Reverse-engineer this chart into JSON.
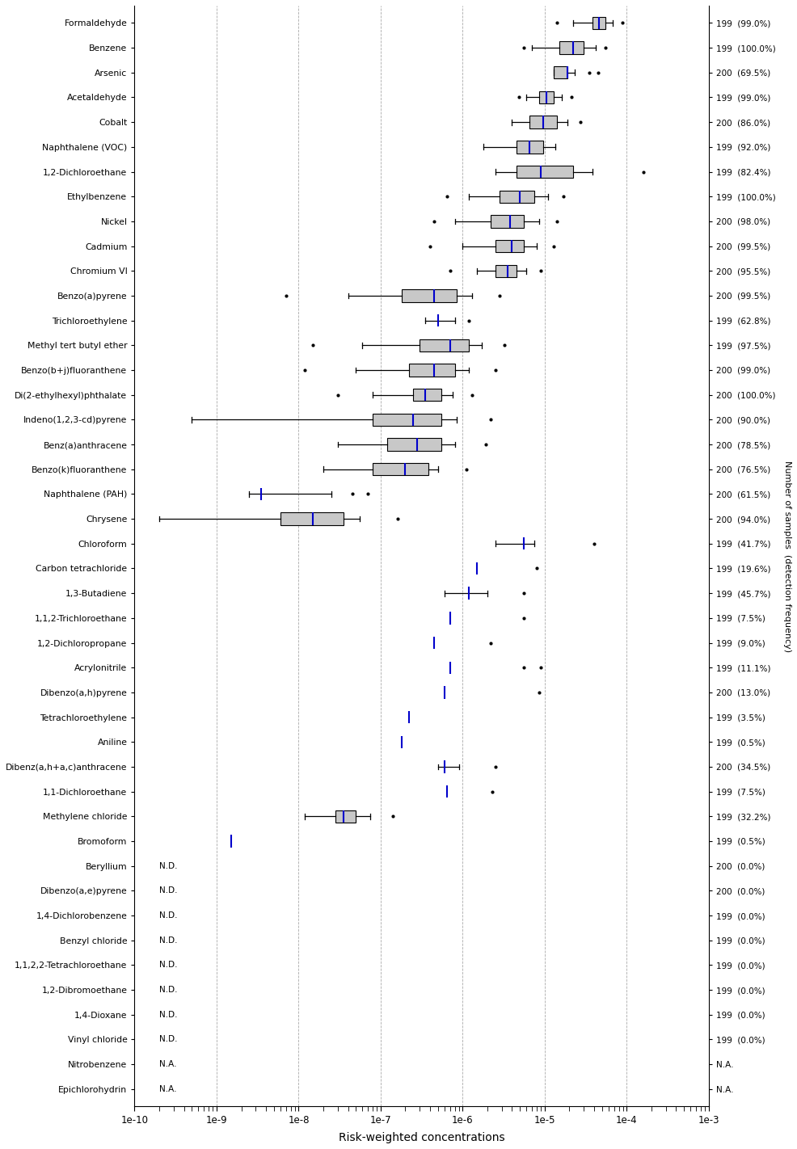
{
  "compounds": [
    "Formaldehyde",
    "Benzene",
    "Arsenic",
    "Acetaldehyde",
    "Cobalt",
    "Naphthalene (VOC)",
    "1,2-Dichloroethane",
    "Ethylbenzene",
    "Nickel",
    "Cadmium",
    "Chromium VI",
    "Benzo(a)pyrene",
    "Trichloroethylene",
    "Methyl tert butyl ether",
    "Benzo(b+j)fluoranthene",
    "Di(2-ethylhexyl)phthalate",
    "Indeno(1,2,3-cd)pyrene",
    "Benz(a)anthracene",
    "Benzo(k)fluoranthene",
    "Naphthalene (PAH)",
    "Chrysene",
    "Chloroform",
    "Carbon tetrachloride",
    "1,3-Butadiene",
    "1,1,2-Trichloroethane",
    "1,2-Dichloropropane",
    "Acrylonitrile",
    "Dibenzo(a,h)pyrene",
    "Tetrachloroethylene",
    "Aniline",
    "Dibenz(a,h+a,c)anthracene",
    "1,1-Dichloroethane",
    "Methylene chloride",
    "Bromoform",
    "Beryllium",
    "Dibenzo(a,e)pyrene",
    "1,4-Dichlorobenzene",
    "Benzyl chloride",
    "1,1,2,2-Tetrachloroethane",
    "1,2-Dibromoethane",
    "1,4-Dioxane",
    "Vinyl chloride",
    "Nitrobenzene",
    "Epichlorohydrin"
  ],
  "n_samples": [
    199,
    199,
    200,
    199,
    200,
    199,
    199,
    199,
    200,
    200,
    200,
    200,
    199,
    199,
    200,
    200,
    200,
    200,
    200,
    200,
    200,
    199,
    199,
    199,
    199,
    199,
    199,
    200,
    199,
    199,
    200,
    199,
    199,
    199,
    200,
    200,
    199,
    199,
    199,
    199,
    199,
    199,
    "N.A.",
    "N.A."
  ],
  "det_freq": [
    "99.0%",
    "100.0%",
    "69.5%",
    "99.0%",
    "86.0%",
    "92.0%",
    "82.4%",
    "100.0%",
    "98.0%",
    "99.5%",
    "95.5%",
    "99.5%",
    "62.8%",
    "97.5%",
    "99.0%",
    "100.0%",
    "90.0%",
    "78.5%",
    "76.5%",
    "61.5%",
    "94.0%",
    "41.7%",
    "19.6%",
    "45.7%",
    "7.5%",
    "9.0%",
    "11.1%",
    "13.0%",
    "3.5%",
    "0.5%",
    "34.5%",
    "7.5%",
    "32.2%",
    "0.5%",
    "0.0%",
    "0.0%",
    "0.0%",
    "0.0%",
    "0.0%",
    "0.0%",
    "0.0%",
    "0.0%",
    "N.A.",
    "N.A."
  ],
  "box_data": {
    "Formaldehyde": {
      "q1": 3.8e-05,
      "median": 4.6e-05,
      "q3": 5.5e-05,
      "wlo": 2.2e-05,
      "whi": 6.8e-05,
      "olo": [
        1.4e-05
      ],
      "ohi": [
        8.8e-05
      ],
      "has_box": true
    },
    "Benzene": {
      "q1": 1.5e-05,
      "median": 2.2e-05,
      "q3": 3e-05,
      "wlo": 7e-06,
      "whi": 4.2e-05,
      "olo": [
        5.5e-06
      ],
      "ohi": [
        5.5e-05
      ],
      "has_box": true
    },
    "Arsenic": {
      "q1": 1.3e-05,
      "median": 1.9e-05,
      "q3": 1.9e-05,
      "wlo": 1.3e-05,
      "whi": 2.3e-05,
      "olo": [],
      "ohi": [
        3.5e-05,
        4.5e-05
      ],
      "has_box": true
    },
    "Acetaldehyde": {
      "q1": 8.5e-06,
      "median": 1.05e-05,
      "q3": 1.3e-05,
      "wlo": 6e-06,
      "whi": 1.6e-05,
      "olo": [
        4.8e-06
      ],
      "ohi": [
        2.1e-05
      ],
      "has_box": true
    },
    "Cobalt": {
      "q1": 6.5e-06,
      "median": 9.5e-06,
      "q3": 1.4e-05,
      "wlo": 4e-06,
      "whi": 1.9e-05,
      "olo": [],
      "ohi": [
        2.7e-05
      ],
      "has_box": true
    },
    "Naphthalene (VOC)": {
      "q1": 4.5e-06,
      "median": 6.5e-06,
      "q3": 9.5e-06,
      "wlo": 1.8e-06,
      "whi": 1.35e-05,
      "olo": [],
      "ohi": [],
      "has_box": true
    },
    "1,2-Dichloroethane": {
      "q1": 4.5e-06,
      "median": 9e-06,
      "q3": 2.2e-05,
      "wlo": 2.5e-06,
      "whi": 3.8e-05,
      "olo": [],
      "ohi": [
        0.00016
      ],
      "has_box": true
    },
    "Ethylbenzene": {
      "q1": 2.8e-06,
      "median": 5e-06,
      "q3": 7.5e-06,
      "wlo": 1.2e-06,
      "whi": 1.1e-05,
      "olo": [
        6.5e-07
      ],
      "ohi": [
        1.7e-05
      ],
      "has_box": true
    },
    "Nickel": {
      "q1": 2.2e-06,
      "median": 3.8e-06,
      "q3": 5.5e-06,
      "wlo": 8e-07,
      "whi": 8.5e-06,
      "olo": [
        4.5e-07
      ],
      "ohi": [
        1.4e-05
      ],
      "has_box": true
    },
    "Cadmium": {
      "q1": 2.5e-06,
      "median": 4e-06,
      "q3": 5.5e-06,
      "wlo": 1e-06,
      "whi": 8e-06,
      "olo": [
        4e-07
      ],
      "ohi": [
        1.3e-05
      ],
      "has_box": true
    },
    "Chromium VI": {
      "q1": 2.5e-06,
      "median": 3.5e-06,
      "q3": 4.5e-06,
      "wlo": 1.5e-06,
      "whi": 6e-06,
      "olo": [
        7e-07
      ],
      "ohi": [
        9e-06
      ],
      "has_box": true
    },
    "Benzo(a)pyrene": {
      "q1": 1.8e-07,
      "median": 4.5e-07,
      "q3": 8.5e-07,
      "wlo": 4e-08,
      "whi": 1.3e-06,
      "olo": [
        7e-09
      ],
      "ohi": [
        2.8e-06
      ],
      "has_box": true
    },
    "Trichloroethylene": {
      "q1": 3.5e-07,
      "median": 5e-07,
      "q3": 3.5e-07,
      "wlo": 3.5e-07,
      "whi": 8e-07,
      "olo": [],
      "ohi": [
        1.2e-06
      ],
      "has_box": false
    },
    "Methyl tert butyl ether": {
      "q1": 3e-07,
      "median": 7e-07,
      "q3": 1.2e-06,
      "wlo": 6e-08,
      "whi": 1.7e-06,
      "olo": [
        1.5e-08
      ],
      "ohi": [
        3.2e-06
      ],
      "has_box": true
    },
    "Benzo(b+j)fluoranthene": {
      "q1": 2.2e-07,
      "median": 4.5e-07,
      "q3": 8e-07,
      "wlo": 5e-08,
      "whi": 1.2e-06,
      "olo": [
        1.2e-08
      ],
      "ohi": [
        2.5e-06
      ],
      "has_box": true
    },
    "Di(2-ethylhexyl)phthalate": {
      "q1": 2.5e-07,
      "median": 3.5e-07,
      "q3": 5.5e-07,
      "wlo": 8e-08,
      "whi": 7.5e-07,
      "olo": [
        3e-08
      ],
      "ohi": [
        1.3e-06
      ],
      "has_box": true
    },
    "Indeno(1,2,3-cd)pyrene": {
      "q1": 8e-08,
      "median": 2.5e-07,
      "q3": 5.5e-07,
      "wlo": 5e-10,
      "whi": 8.5e-07,
      "olo": [],
      "ohi": [
        2.2e-06
      ],
      "has_box": true
    },
    "Benz(a)anthracene": {
      "q1": 1.2e-07,
      "median": 2.8e-07,
      "q3": 5.5e-07,
      "wlo": 3e-08,
      "whi": 8e-07,
      "olo": [],
      "ohi": [
        1.9e-06
      ],
      "has_box": true
    },
    "Benzo(k)fluoranthene": {
      "q1": 8e-08,
      "median": 2e-07,
      "q3": 3.8e-07,
      "wlo": 2e-08,
      "whi": 5e-07,
      "olo": [],
      "ohi": [
        1.1e-06
      ],
      "has_box": true
    },
    "Naphthalene (PAH)": {
      "q1": 2.5e-09,
      "median": 3.5e-09,
      "q3": 2.5e-09,
      "wlo": 2.5e-09,
      "whi": 2.5e-08,
      "olo": [],
      "ohi": [
        4.5e-08,
        7e-08
      ],
      "has_box": false
    },
    "Chrysene": {
      "q1": 6e-09,
      "median": 1.5e-08,
      "q3": 3.5e-08,
      "wlo": 2e-10,
      "whi": 5.5e-08,
      "olo": [],
      "ohi": [
        1.6e-07
      ],
      "has_box": true
    },
    "Chloroform": {
      "q1": 3.5e-06,
      "median": 5.5e-06,
      "q3": 3.5e-06,
      "wlo": 2.5e-06,
      "whi": 7.5e-06,
      "olo": [],
      "ohi": [
        4e-05
      ],
      "has_box": false
    },
    "Carbon tetrachloride": {
      "q1": 1e-06,
      "median": 1.5e-06,
      "q3": 1e-06,
      "wlo": 1e-06,
      "whi": 1e-06,
      "olo": [],
      "ohi": [
        8e-06
      ],
      "has_box": false
    },
    "1,3-Butadiene": {
      "q1": 8e-07,
      "median": 1.2e-06,
      "q3": 8e-07,
      "wlo": 6e-07,
      "whi": 2e-06,
      "olo": [],
      "ohi": [
        5.5e-06
      ],
      "has_box": false
    },
    "1,1,2-Trichloroethane": {
      "q1": 5e-07,
      "median": 7e-07,
      "q3": 5e-07,
      "wlo": 5e-07,
      "whi": 5e-07,
      "olo": [],
      "ohi": [
        5.5e-06
      ],
      "has_box": false
    },
    "1,2-Dichloropropane": {
      "q1": 3e-07,
      "median": 4.5e-07,
      "q3": 3e-07,
      "wlo": 3e-07,
      "whi": 3e-07,
      "olo": [],
      "ohi": [
        2.2e-06
      ],
      "has_box": false
    },
    "Acrylonitrile": {
      "q1": 5e-07,
      "median": 7e-07,
      "q3": 5e-07,
      "wlo": 5e-07,
      "whi": 5e-07,
      "olo": [],
      "ohi": [
        5.5e-06,
        9e-06
      ],
      "has_box": false
    },
    "Dibenzo(a,h)pyrene": {
      "q1": 4e-07,
      "median": 6e-07,
      "q3": 4e-07,
      "wlo": 4e-07,
      "whi": 4e-07,
      "olo": [],
      "ohi": [
        8.5e-06
      ],
      "has_box": false
    },
    "Tetrachloroethylene": {
      "q1": 1.5e-07,
      "median": 2.2e-07,
      "q3": 1.5e-07,
      "wlo": 1.5e-07,
      "whi": 1.5e-07,
      "olo": [],
      "ohi": [],
      "has_box": false
    },
    "Aniline": {
      "q1": 1.2e-07,
      "median": 1.8e-07,
      "q3": 1.2e-07,
      "wlo": 1.2e-07,
      "whi": 1.2e-07,
      "olo": [],
      "ohi": [],
      "has_box": false
    },
    "Dibenz(a,h+a,c)anthracene": {
      "q1": 6e-07,
      "median": 6e-07,
      "q3": 6e-07,
      "wlo": 5e-07,
      "whi": 9e-07,
      "olo": [],
      "ohi": [
        2.5e-06
      ],
      "has_box": false
    },
    "1,1-Dichloroethane": {
      "q1": 5e-07,
      "median": 6.5e-07,
      "q3": 5e-07,
      "wlo": 5e-07,
      "whi": 5e-07,
      "olo": [],
      "ohi": [
        2.3e-06
      ],
      "has_box": false
    },
    "Methylene chloride": {
      "q1": 2.8e-08,
      "median": 3.5e-08,
      "q3": 5e-08,
      "wlo": 1.2e-08,
      "whi": 7.5e-08,
      "olo": [],
      "ohi": [
        1.4e-07
      ],
      "has_box": true
    },
    "Bromoform": {
      "q1": 8e-10,
      "median": 1.5e-09,
      "q3": 8e-10,
      "wlo": 8e-10,
      "whi": 8e-10,
      "olo": [],
      "ohi": [],
      "has_box": false
    },
    "Beryllium": null,
    "Dibenzo(a,e)pyrene": null,
    "1,4-Dichlorobenzene": null,
    "Benzyl chloride": null,
    "1,1,2,2-Tetrachloroethane": null,
    "1,2-Dibromoethane": null,
    "1,4-Dioxane": null,
    "Vinyl chloride": null,
    "Nitrobenzene": null,
    "Epichlorohydrin": null
  },
  "xlabel": "Risk-weighted concentrations",
  "xmin": 1e-10,
  "xmax": 0.001,
  "fig_width": 9.86,
  "fig_height": 14.22,
  "dpi": 100,
  "box_facecolor": "#c8c8c8",
  "box_edgecolor": "#000000",
  "median_color": "#0000cc",
  "whisker_color": "#000000",
  "outlier_color": "#000000",
  "grid_color": "#aaaaaa"
}
